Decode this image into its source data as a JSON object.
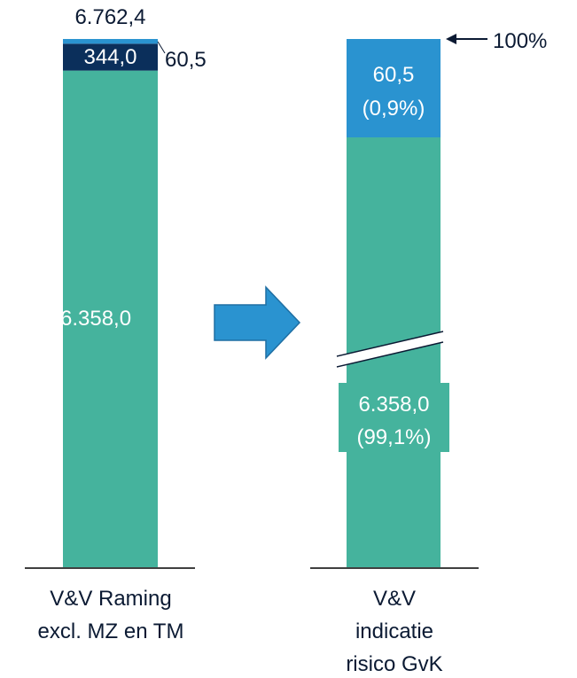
{
  "chart_data": [
    {
      "type": "stacked-bar",
      "categories": [
        "V&V Raming excl. MZ en TM"
      ],
      "series": [
        {
          "color": "#45b39d",
          "values": [
            6358.0
          ],
          "value_labels": [
            "6.358,0"
          ]
        },
        {
          "color": "#0b2f5b",
          "values": [
            344.0
          ],
          "value_labels": [
            "344,0"
          ]
        },
        {
          "color": "#2a93d0",
          "values": [
            60.5
          ],
          "value_labels": [
            "60,5"
          ]
        }
      ],
      "total": 6762.4,
      "total_label": "6.762,4",
      "ylim": [
        0,
        6762.4
      ]
    },
    {
      "type": "broken-bar",
      "categories": [
        "V&V indicatie risico GvK"
      ],
      "series": [
        {
          "color": "#45b39d",
          "values": [
            6358.0
          ],
          "value_labels": [
            "6.358,0"
          ],
          "shares": [
            99.1
          ],
          "share_labels": [
            "(99,1%)"
          ]
        },
        {
          "color": "#2a93d0",
          "values": [
            60.5
          ],
          "value_labels": [
            "60,5"
          ],
          "shares": [
            0.9
          ],
          "share_labels": [
            "(0,9%)"
          ]
        }
      ],
      "annotation": "100%"
    }
  ]
}
